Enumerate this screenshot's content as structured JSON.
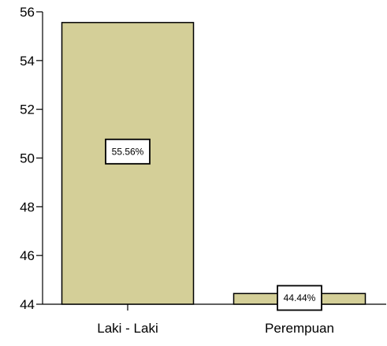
{
  "chart_data": {
    "type": "bar",
    "categories": [
      "Laki - Laki",
      "Perempuan"
    ],
    "values": [
      55.56,
      44.44
    ],
    "data_labels": [
      "55.56%",
      "44.44%"
    ],
    "ylim": [
      44,
      56
    ],
    "yticks": [
      44,
      46,
      48,
      50,
      52,
      54,
      56
    ],
    "grid": false,
    "legend": "none",
    "colors": {
      "bar_fill": "#d4cf98",
      "bar_stroke": "#000000",
      "label_box": "#ffffff"
    }
  }
}
